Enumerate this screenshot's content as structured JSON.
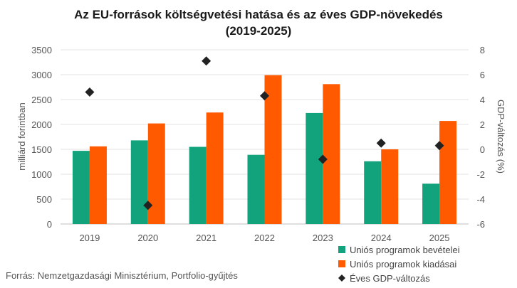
{
  "chart_data": {
    "type": "bar",
    "title_line1": "Az EU-források költségvetési hatása és az éves GDP-növekedés",
    "title_line2": "(2019-2025)",
    "categories": [
      "2019",
      "2020",
      "2021",
      "2022",
      "2023",
      "2024",
      "2025"
    ],
    "series": [
      {
        "name": "Uniós programok bevételei",
        "type": "bar",
        "axis": "left",
        "color": "#13a37c",
        "values": [
          1470,
          1680,
          1550,
          1390,
          2230,
          1260,
          810
        ]
      },
      {
        "name": "Uniós programok kiadásai",
        "type": "bar",
        "axis": "left",
        "color": "#ff5a00",
        "values": [
          1560,
          2020,
          2240,
          2990,
          2810,
          1500,
          2070
        ]
      },
      {
        "name": "Éves GDP-változás",
        "type": "scatter",
        "axis": "right",
        "color": "#222222",
        "marker": "diamond",
        "values": [
          4.6,
          -4.5,
          7.1,
          4.3,
          -0.8,
          0.5,
          0.3
        ]
      }
    ],
    "ylabel": "milliárd forintban",
    "y2label": "GDP-változás (%)",
    "ylim": [
      0,
      3500
    ],
    "yticks": [
      "0",
      "500",
      "1000",
      "1500",
      "2000",
      "2500",
      "3000",
      "3500"
    ],
    "y2lim": [
      -6,
      8
    ],
    "y2ticks": [
      "-6",
      "-4",
      "-2",
      "0",
      "2",
      "4",
      "6",
      "8"
    ],
    "grid": true,
    "legend_position": "bottom-right"
  },
  "source": "Forrás: Nemzetgazdasági Minisztérium, Portfolio-gyűjtés"
}
